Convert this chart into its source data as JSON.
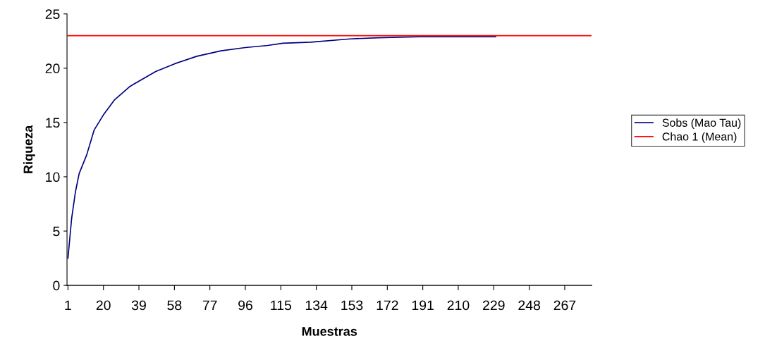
{
  "chart_data": {
    "type": "line",
    "xlabel": "Muestras",
    "ylabel": "Riqueza",
    "xlim": [
      0.5,
      281.5
    ],
    "xticks": [
      1,
      20,
      39,
      58,
      77,
      96,
      115,
      134,
      153,
      172,
      191,
      210,
      229,
      248,
      267
    ],
    "ylim": [
      0,
      25
    ],
    "yticks": [
      0,
      5,
      10,
      15,
      20,
      25
    ],
    "grid": false,
    "legend": "right",
    "marker": "none",
    "line_style": "solid",
    "series": [
      {
        "name": "Sobs (Mao Tau)",
        "color": "#000080",
        "x": [
          1,
          3,
          5,
          7,
          11,
          15,
          20,
          26,
          34,
          39,
          48,
          58,
          70,
          83,
          96,
          108,
          116,
          131,
          152,
          167,
          189,
          230
        ],
        "values": [
          2.5,
          6.2,
          8.6,
          10.3,
          12.0,
          14.3,
          15.7,
          17.1,
          18.3,
          18.8,
          19.7,
          20.4,
          21.1,
          21.6,
          21.9,
          22.1,
          22.3,
          22.4,
          22.7,
          22.8,
          22.9,
          22.9
        ]
      },
      {
        "name": "Chao 1 (Mean)",
        "color": "#ff0000",
        "x": [
          1,
          281
        ],
        "values": [
          23,
          23
        ]
      }
    ]
  }
}
